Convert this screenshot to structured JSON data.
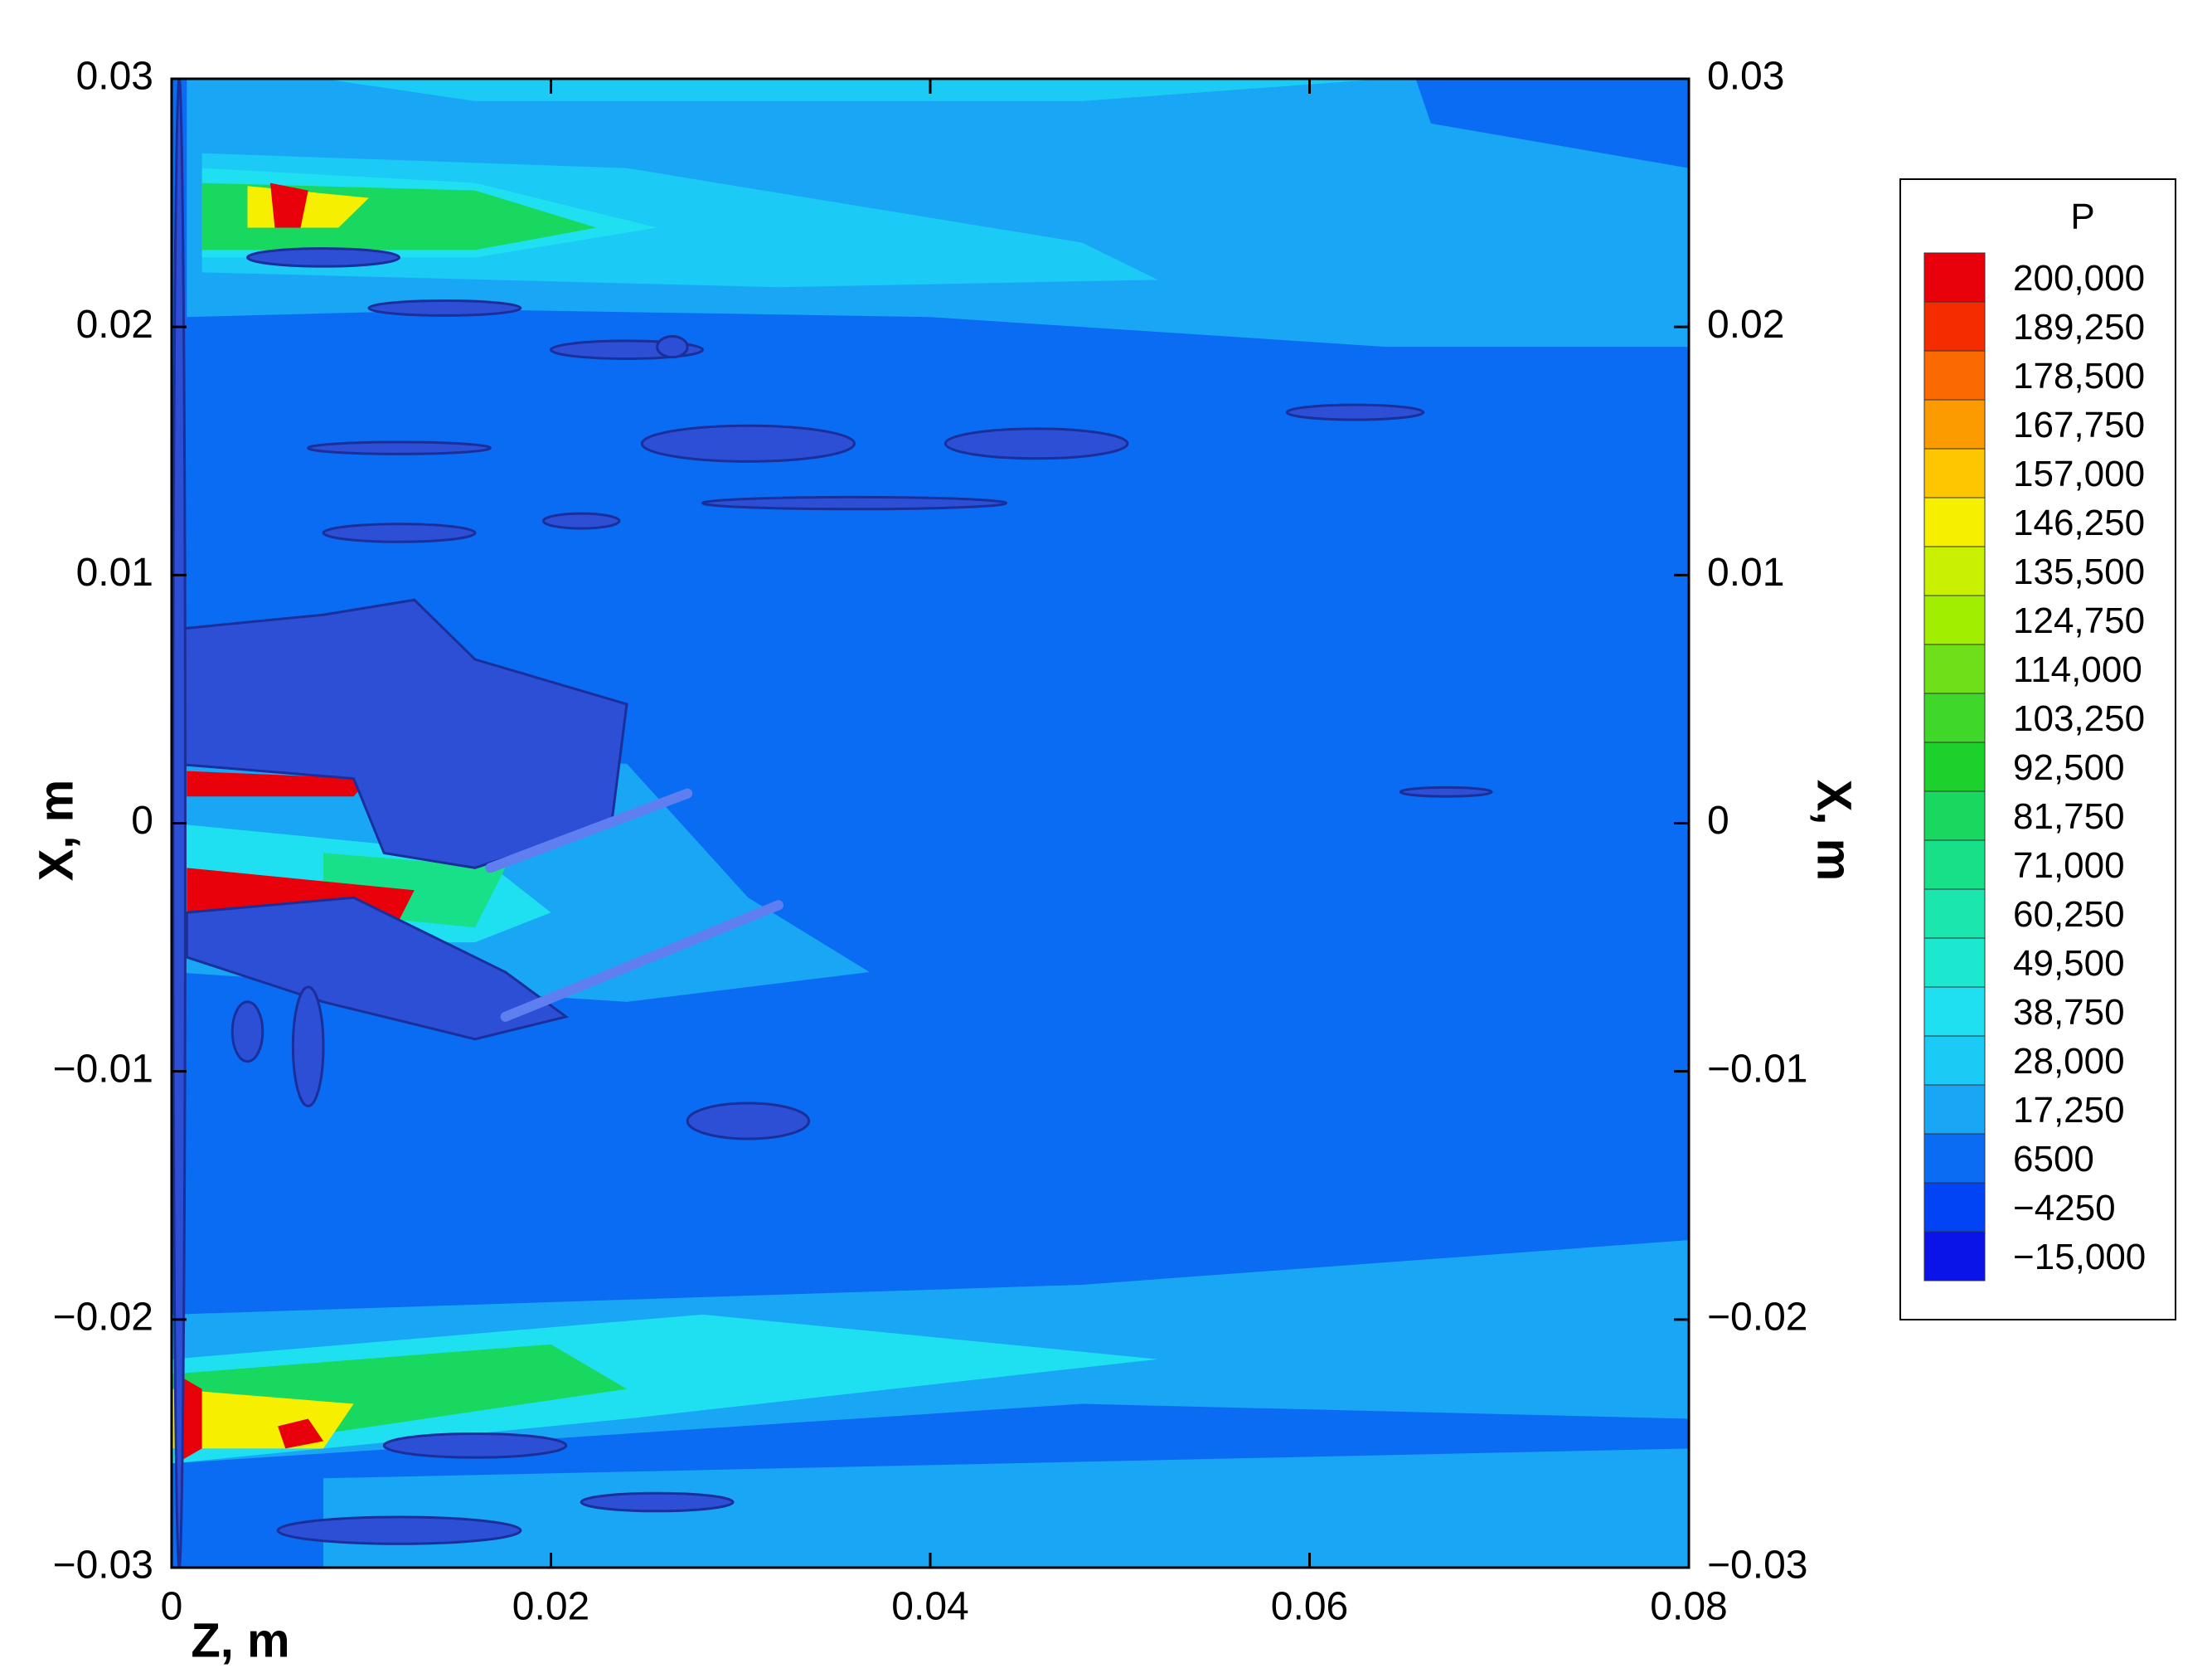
{
  "chart_data": {
    "type": "contour",
    "xlabel": "Z, m",
    "ylabel": "X, m",
    "y2label": "X, m",
    "xlim": [
      0,
      0.08
    ],
    "xticks": [
      0,
      0.02,
      0.04,
      0.06,
      0.08
    ],
    "ylim": [
      -0.03,
      0.03
    ],
    "yticks": [
      {
        "value": -0.03,
        "label": "−0.03"
      },
      {
        "value": -0.02,
        "label": "−0.02"
      },
      {
        "value": -0.01,
        "label": "−0.01"
      },
      0,
      0.01,
      0.02,
      0.03
    ],
    "colorbar": {
      "title": "P",
      "levels": [
        {
          "value": 200000,
          "label": "200,000"
        },
        {
          "value": 189250,
          "label": "189,250"
        },
        {
          "value": 178500,
          "label": "178,500"
        },
        {
          "value": 167750,
          "label": "167,750"
        },
        {
          "value": 157000,
          "label": "157,000"
        },
        {
          "value": 146250,
          "label": "146,250"
        },
        {
          "value": 135500,
          "label": "135,500"
        },
        {
          "value": 124750,
          "label": "124,750"
        },
        {
          "value": 114000,
          "label": "114,000"
        },
        {
          "value": 103250,
          "label": "103,250"
        },
        {
          "value": 92500,
          "label": "92,500"
        },
        {
          "value": 81750,
          "label": "81,750"
        },
        {
          "value": 71000,
          "label": "71,000"
        },
        {
          "value": 60250,
          "label": "60,250"
        },
        {
          "value": 49500,
          "label": "49,500"
        },
        {
          "value": 38750,
          "label": "38,750"
        },
        {
          "value": 28000,
          "label": "28,000"
        },
        {
          "value": 17250,
          "label": "17,250"
        },
        6500,
        {
          "value": -4250,
          "label": "−4250"
        },
        {
          "value": -15000,
          "label": "−15,000"
        }
      ],
      "colors": [
        "#e8000b",
        "#f52c00",
        "#fa6a00",
        "#fc9b00",
        "#fec600",
        "#f6f000",
        "#c9f000",
        "#a2ee00",
        "#6ee01a",
        "#3fd82a",
        "#1cd12c",
        "#19d860",
        "#18e088",
        "#1ae6ae",
        "#1ce8d0",
        "#1ee0f0",
        "#1ccbf5",
        "#19a6f5",
        "#0a6cf2",
        "#0044f5",
        "#0a14e8"
      ]
    }
  }
}
